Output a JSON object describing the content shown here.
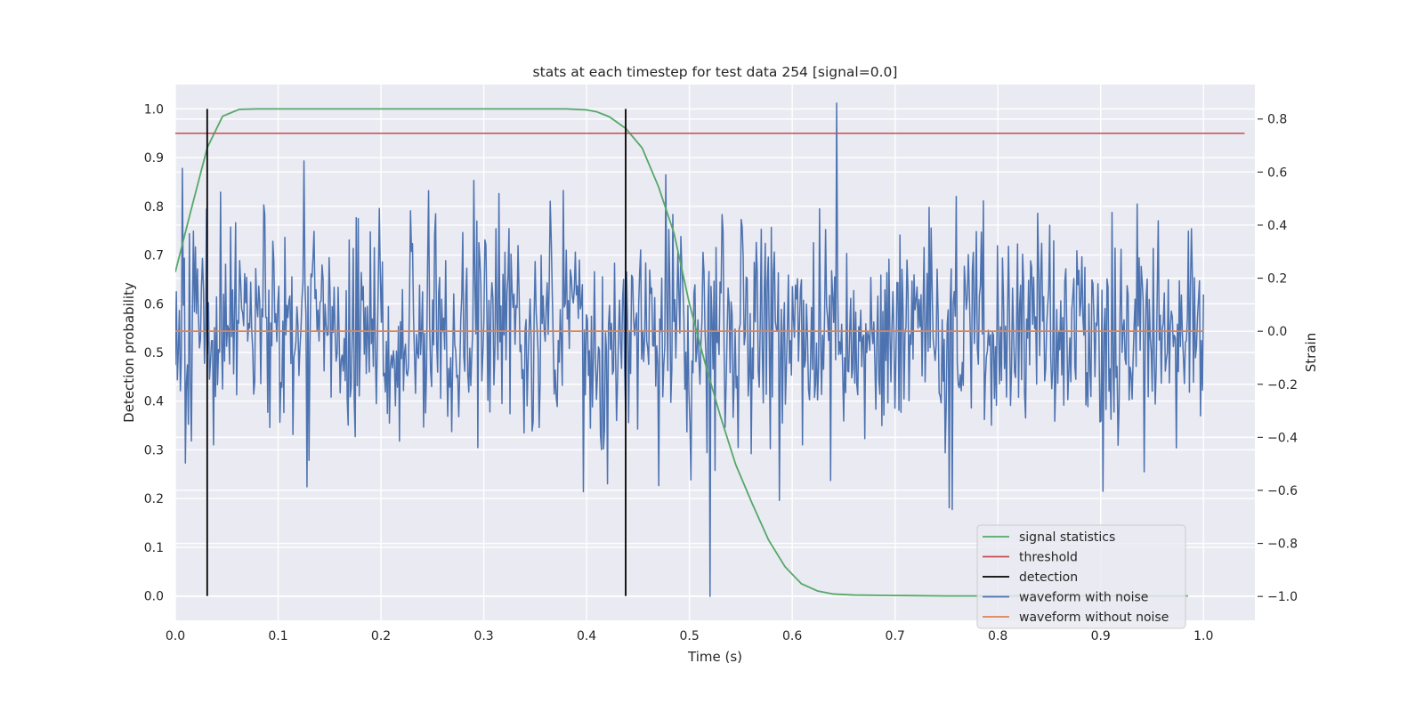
{
  "chart_data": {
    "type": "line",
    "title": "stats at each timestep for test data 254 [signal=0.0]",
    "xlabel": "Time (s)",
    "ylabel_left": "Detection probability",
    "ylabel_right": "Strain",
    "xlim": [
      0.0,
      1.05
    ],
    "ylim_left": [
      -0.05,
      1.05
    ],
    "ylim_right": [
      -1.09,
      0.93
    ],
    "x_ticks": [
      "0.0",
      "0.1",
      "0.2",
      "0.3",
      "0.4",
      "0.5",
      "0.6",
      "0.7",
      "0.8",
      "0.9",
      "1.0"
    ],
    "y_left_ticks": [
      "0.0",
      "0.1",
      "0.2",
      "0.3",
      "0.4",
      "0.5",
      "0.6",
      "0.7",
      "0.8",
      "0.9",
      "1.0"
    ],
    "y_right_ticks": [
      "−1.0",
      "−0.8",
      "−0.6",
      "−0.4",
      "−0.2",
      "0.0",
      "0.2",
      "0.4",
      "0.6",
      "0.8"
    ],
    "grid": true,
    "background": "#EAEAF2",
    "legend_position": "lower right",
    "colors": {
      "signal_statistics": "#55A868",
      "threshold": "#C44E52",
      "detection": "#000000",
      "waveform_with_noise": "#4C72B0",
      "waveform_without_noise": "#DD8452"
    },
    "series": [
      {
        "name": "signal statistics",
        "axis": "left",
        "x": [
          0.0,
          0.015,
          0.031,
          0.046,
          0.062,
          0.08,
          0.1,
          0.15,
          0.2,
          0.25,
          0.3,
          0.35,
          0.38,
          0.4,
          0.41,
          0.422,
          0.438,
          0.454,
          0.47,
          0.485,
          0.5,
          0.515,
          0.53,
          0.545,
          0.561,
          0.577,
          0.593,
          0.609,
          0.625,
          0.64,
          0.66,
          0.7,
          0.75,
          0.8,
          0.85,
          0.9,
          0.95,
          0.985
        ],
        "y": [
          0.665,
          0.79,
          0.92,
          0.985,
          0.999,
          1.0,
          1.0,
          1.0,
          1.0,
          1.0,
          1.0,
          1.0,
          1.0,
          0.998,
          0.994,
          0.984,
          0.96,
          0.92,
          0.84,
          0.745,
          0.6,
          0.48,
          0.37,
          0.27,
          0.19,
          0.115,
          0.06,
          0.025,
          0.01,
          0.004,
          0.002,
          0.001,
          0.0,
          0.0,
          0.0,
          0.0,
          0.0,
          0.0
        ]
      },
      {
        "name": "threshold",
        "axis": "left",
        "x": [
          0.0,
          1.04
        ],
        "y": [
          0.95,
          0.95
        ]
      },
      {
        "name": "detection",
        "axis": "left",
        "kind": "vlines",
        "x": [
          0.031,
          0.438
        ],
        "ymin": 0.0,
        "ymax": 1.0
      },
      {
        "name": "waveform with noise",
        "axis": "right",
        "kind": "noise",
        "x_range": [
          0.0,
          1.0
        ],
        "samples": 1024,
        "std": 0.21,
        "seed": 254,
        "y_min": -1.0,
        "y_max": 0.86
      },
      {
        "name": "waveform without noise",
        "axis": "right",
        "x": [
          0.0,
          1.0
        ],
        "y": [
          0.0,
          0.0
        ]
      }
    ],
    "legend": [
      "signal statistics",
      "threshold",
      "detection",
      "waveform with noise",
      "waveform without noise"
    ]
  }
}
